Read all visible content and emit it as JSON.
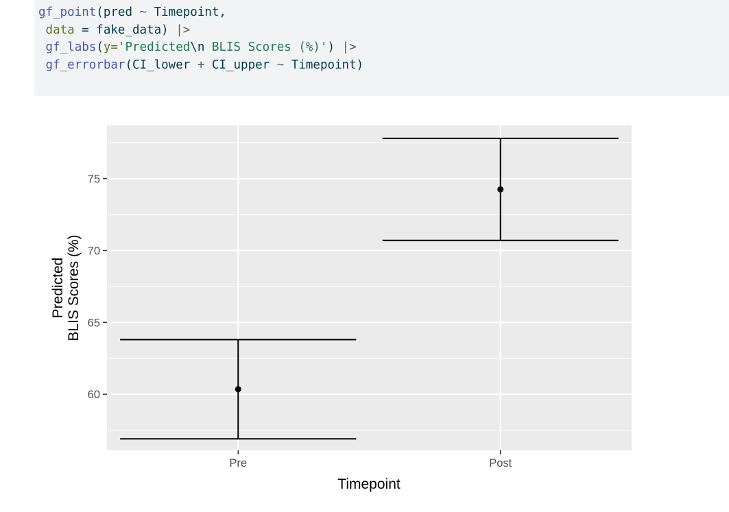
{
  "code": {
    "lines": [
      [
        {
          "t": "gf_point",
          "c": "fn"
        },
        {
          "t": "(pred ",
          "c": "txt"
        },
        {
          "t": "~",
          "c": "op"
        },
        {
          "t": " Timepoint,",
          "c": "txt"
        }
      ],
      [
        {
          "t": " ",
          "c": "txt"
        },
        {
          "t": "data",
          "c": "arg"
        },
        {
          "t": " = fake_data) ",
          "c": "txt"
        },
        {
          "t": "|>",
          "c": "op"
        }
      ],
      [
        {
          "t": " ",
          "c": "txt"
        },
        {
          "t": "gf_labs",
          "c": "fn"
        },
        {
          "t": "(",
          "c": "txt"
        },
        {
          "t": "y=",
          "c": "arg"
        },
        {
          "t": "'Predicted",
          "c": "str"
        },
        {
          "t": "\\n",
          "c": "txt"
        },
        {
          "t": " BLIS Scores (%)'",
          "c": "str"
        },
        {
          "t": ") ",
          "c": "txt"
        },
        {
          "t": "|>",
          "c": "op"
        }
      ],
      [
        {
          "t": " ",
          "c": "txt"
        },
        {
          "t": "gf_errorbar",
          "c": "fn"
        },
        {
          "t": "(CI_lower ",
          "c": "txt"
        },
        {
          "t": "+",
          "c": "op"
        },
        {
          "t": " CI_upper ",
          "c": "txt"
        },
        {
          "t": "~",
          "c": "op"
        },
        {
          "t": " Timepoint)",
          "c": "txt"
        }
      ]
    ]
  },
  "chart_data": {
    "type": "scatter",
    "title": "",
    "xlabel": "Timepoint",
    "ylabel_lines": [
      "Predicted",
      "BLIS Scores (%)"
    ],
    "categories": [
      "Pre",
      "Post"
    ],
    "points": [
      {
        "x": "Pre",
        "y": 60.35,
        "ci_lower": 56.9,
        "ci_upper": 63.8
      },
      {
        "x": "Post",
        "y": 74.25,
        "ci_lower": 70.7,
        "ci_upper": 77.8
      }
    ],
    "yticks": [
      60,
      65,
      70,
      75
    ],
    "ylim": [
      56.1,
      78.7
    ],
    "grid": true,
    "legend": "none",
    "colors": {
      "panel": "#ebebeb",
      "grid": "#ffffff",
      "marks": "#000000",
      "tick_label": "#4d4d4d",
      "axis_title": "#000000"
    }
  }
}
